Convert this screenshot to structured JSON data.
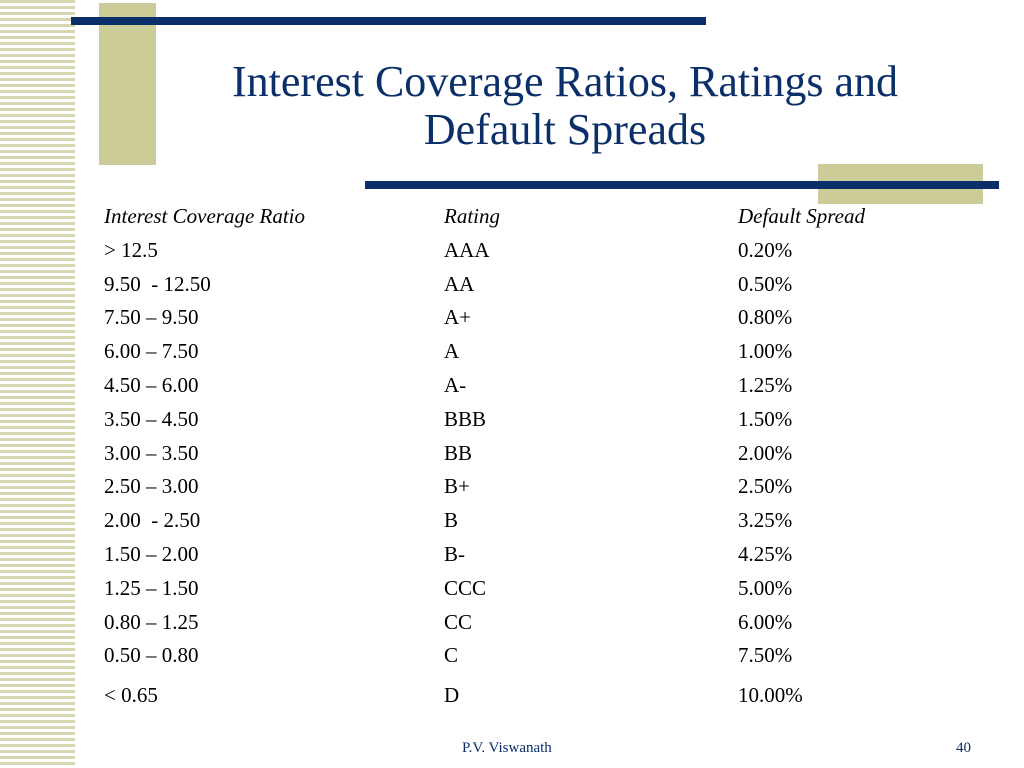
{
  "title": {
    "line1": "Interest Coverage Ratios, Ratings and",
    "line2": "Default Spreads"
  },
  "table": {
    "headers": [
      "Interest Coverage Ratio",
      "Rating",
      "Default Spread"
    ],
    "rows": [
      [
        "> 12.5",
        "AAA",
        "0.20%"
      ],
      [
        "9.50  - 12.50",
        "AA",
        "0.50%"
      ],
      [
        "7.50 – 9.50",
        "A+",
        "0.80%"
      ],
      [
        "6.00 – 7.50",
        "A",
        "1.00%"
      ],
      [
        "4.50 – 6.00",
        "A-",
        "1.25%"
      ],
      [
        "3.50 – 4.50",
        "BBB",
        "1.50%"
      ],
      [
        "3.00 – 3.50",
        "BB",
        "2.00%"
      ],
      [
        "2.50 – 3.00",
        "B+",
        "2.50%"
      ],
      [
        "2.00  - 2.50",
        "B",
        "3.25%"
      ],
      [
        "1.50 – 2.00",
        "B-",
        "4.25%"
      ],
      [
        "1.25 – 1.50",
        "CCC",
        "5.00%"
      ],
      [
        "0.80 – 1.25",
        "CC",
        "6.00%"
      ],
      [
        "0.50 – 0.80",
        "C",
        "7.50%"
      ],
      [
        "< 0.65",
        "D",
        "10.00%"
      ]
    ]
  },
  "footer": {
    "author": "P.V. Viswanath",
    "page": "40"
  },
  "colors": {
    "title": "#0b2f68",
    "accent_bar": "#0b2f68",
    "accent_block": "#cccc99"
  }
}
